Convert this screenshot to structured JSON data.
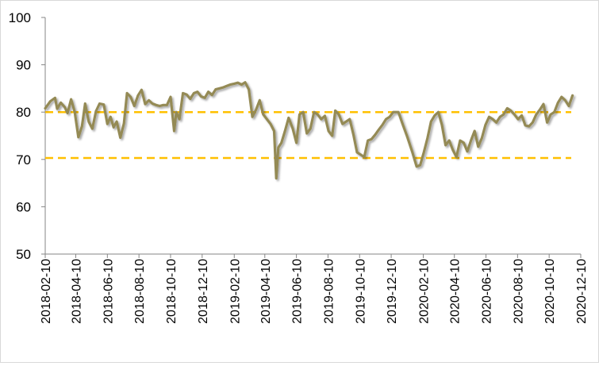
{
  "chart_data": {
    "type": "line",
    "title": "",
    "xlabel": "",
    "ylabel": "",
    "ylim": [
      50,
      100
    ],
    "yticks": [
      50,
      60,
      70,
      80,
      90,
      100
    ],
    "xlim": [
      "2018-02-10",
      "2020-12-10"
    ],
    "xticks": [
      "2018-02-10",
      "2018-04-10",
      "2018-06-10",
      "2018-08-10",
      "2018-10-10",
      "2018-12-10",
      "2019-02-10",
      "2019-04-10",
      "2019-06-10",
      "2019-08-10",
      "2019-10-10",
      "2019-12-10",
      "2020-02-10",
      "2020-04-10",
      "2020-06-10",
      "2020-08-10",
      "2020-10-10",
      "2020-12-10"
    ],
    "grid": false,
    "legend": "none",
    "reference_lines": [
      {
        "y": 80,
        "style": "dashed",
        "color": "#ffc000"
      },
      {
        "y": 70.3,
        "style": "dashed",
        "color": "#ffc000"
      }
    ],
    "series": [
      {
        "color": "#948a54",
        "points": [
          [
            "2018-02-10",
            80.8
          ],
          [
            "2018-02-20",
            82.3
          ],
          [
            "2018-03-01",
            83.0
          ],
          [
            "2018-03-05",
            80.7
          ],
          [
            "2018-03-12",
            82.0
          ],
          [
            "2018-03-20",
            81.0
          ],
          [
            "2018-03-25",
            79.8
          ],
          [
            "2018-04-01",
            82.7
          ],
          [
            "2018-04-08",
            80.0
          ],
          [
            "2018-04-15",
            74.7
          ],
          [
            "2018-04-22",
            77.0
          ],
          [
            "2018-04-28",
            81.8
          ],
          [
            "2018-05-05",
            78.0
          ],
          [
            "2018-05-12",
            76.5
          ],
          [
            "2018-05-19",
            80.2
          ],
          [
            "2018-05-26",
            81.8
          ],
          [
            "2018-06-03",
            81.6
          ],
          [
            "2018-06-10",
            77.5
          ],
          [
            "2018-06-16",
            79.0
          ],
          [
            "2018-06-22",
            76.8
          ],
          [
            "2018-06-28",
            78.0
          ],
          [
            "2018-07-05",
            74.6
          ],
          [
            "2018-07-12",
            77.6
          ],
          [
            "2018-07-18",
            84.0
          ],
          [
            "2018-07-25",
            83.2
          ],
          [
            "2018-08-01",
            81.3
          ],
          [
            "2018-08-08",
            83.5
          ],
          [
            "2018-08-15",
            84.7
          ],
          [
            "2018-08-22",
            81.7
          ],
          [
            "2018-08-29",
            82.5
          ],
          [
            "2018-09-05",
            81.8
          ],
          [
            "2018-09-12",
            81.5
          ],
          [
            "2018-09-19",
            81.3
          ],
          [
            "2018-09-26",
            81.5
          ],
          [
            "2018-10-03",
            81.5
          ],
          [
            "2018-10-10",
            83.2
          ],
          [
            "2018-10-17",
            76.0
          ],
          [
            "2018-10-21",
            80.0
          ],
          [
            "2018-10-27",
            78.5
          ],
          [
            "2018-11-03",
            84.0
          ],
          [
            "2018-11-10",
            83.7
          ],
          [
            "2018-11-17",
            82.8
          ],
          [
            "2018-11-24",
            84.0
          ],
          [
            "2018-12-01",
            84.3
          ],
          [
            "2018-12-08",
            83.3
          ],
          [
            "2018-12-15",
            83.0
          ],
          [
            "2018-12-22",
            84.3
          ],
          [
            "2018-12-29",
            83.6
          ],
          [
            "2019-01-05",
            84.8
          ],
          [
            "2019-01-12",
            85.0
          ],
          [
            "2019-01-19",
            85.2
          ],
          [
            "2019-01-26",
            85.5
          ],
          [
            "2019-02-02",
            85.8
          ],
          [
            "2019-02-10",
            86.0
          ],
          [
            "2019-02-17",
            86.2
          ],
          [
            "2019-02-24",
            85.8
          ],
          [
            "2019-03-03",
            86.3
          ],
          [
            "2019-03-10",
            84.8
          ],
          [
            "2019-03-17",
            79.0
          ],
          [
            "2019-03-24",
            80.5
          ],
          [
            "2019-03-31",
            82.5
          ],
          [
            "2019-04-07",
            79.5
          ],
          [
            "2019-04-14",
            78.5
          ],
          [
            "2019-04-21",
            77.5
          ],
          [
            "2019-04-28",
            76.0
          ],
          [
            "2019-05-02",
            66.0
          ],
          [
            "2019-05-06",
            72.5
          ],
          [
            "2019-05-12",
            73.5
          ],
          [
            "2019-05-19",
            76.0
          ],
          [
            "2019-05-26",
            78.8
          ],
          [
            "2019-06-03",
            76.5
          ],
          [
            "2019-06-10",
            73.5
          ],
          [
            "2019-06-16",
            79.5
          ],
          [
            "2019-06-23",
            80.0
          ],
          [
            "2019-06-30",
            75.5
          ],
          [
            "2019-07-07",
            76.5
          ],
          [
            "2019-07-14",
            80.0
          ],
          [
            "2019-07-21",
            79.5
          ],
          [
            "2019-07-28",
            78.5
          ],
          [
            "2019-08-04",
            79.2
          ],
          [
            "2019-08-11",
            76.0
          ],
          [
            "2019-08-18",
            75.0
          ],
          [
            "2019-08-24",
            80.3
          ],
          [
            "2019-08-31",
            79.5
          ],
          [
            "2019-09-07",
            77.5
          ],
          [
            "2019-09-14",
            78.0
          ],
          [
            "2019-09-21",
            78.5
          ],
          [
            "2019-09-28",
            75.3
          ],
          [
            "2019-10-05",
            71.5
          ],
          [
            "2019-10-12",
            71.0
          ],
          [
            "2019-10-19",
            70.5
          ],
          [
            "2019-10-26",
            74.0
          ],
          [
            "2019-11-02",
            74.3
          ],
          [
            "2019-11-09",
            75.2
          ],
          [
            "2019-11-16",
            76.3
          ],
          [
            "2019-11-23",
            77.3
          ],
          [
            "2019-11-30",
            78.5
          ],
          [
            "2019-12-07",
            79.0
          ],
          [
            "2019-12-14",
            80.0
          ],
          [
            "2019-12-24",
            80.0
          ],
          [
            "2020-01-01",
            77.5
          ],
          [
            "2020-01-10",
            74.8
          ],
          [
            "2020-01-20",
            71.5
          ],
          [
            "2020-01-28",
            68.5
          ],
          [
            "2020-02-04",
            68.8
          ],
          [
            "2020-02-11",
            71.5
          ],
          [
            "2020-02-18",
            74.5
          ],
          [
            "2020-02-25",
            78.0
          ],
          [
            "2020-03-03",
            79.3
          ],
          [
            "2020-03-10",
            80.0
          ],
          [
            "2020-03-17",
            77.3
          ],
          [
            "2020-03-24",
            73.0
          ],
          [
            "2020-03-31",
            74.0
          ],
          [
            "2020-04-07",
            72.0
          ],
          [
            "2020-04-14",
            70.5
          ],
          [
            "2020-04-21",
            74.0
          ],
          [
            "2020-04-28",
            73.5
          ],
          [
            "2020-05-05",
            71.7
          ],
          [
            "2020-05-12",
            74.0
          ],
          [
            "2020-05-19",
            76.0
          ],
          [
            "2020-05-26",
            72.7
          ],
          [
            "2020-06-02",
            74.5
          ],
          [
            "2020-06-09",
            77.3
          ],
          [
            "2020-06-16",
            79.0
          ],
          [
            "2020-06-23",
            78.5
          ],
          [
            "2020-06-30",
            77.8
          ],
          [
            "2020-07-07",
            79.0
          ],
          [
            "2020-07-14",
            79.5
          ],
          [
            "2020-07-21",
            80.8
          ],
          [
            "2020-07-28",
            80.3
          ],
          [
            "2020-08-04",
            79.5
          ],
          [
            "2020-08-11",
            78.5
          ],
          [
            "2020-08-18",
            79.3
          ],
          [
            "2020-08-25",
            77.2
          ],
          [
            "2020-09-01",
            77.0
          ],
          [
            "2020-09-08",
            77.8
          ],
          [
            "2020-09-15",
            79.5
          ],
          [
            "2020-09-22",
            80.5
          ],
          [
            "2020-09-29",
            81.7
          ],
          [
            "2020-10-06",
            77.8
          ],
          [
            "2020-10-13",
            79.5
          ],
          [
            "2020-10-20",
            80.0
          ],
          [
            "2020-10-27",
            82.0
          ],
          [
            "2020-11-03",
            83.2
          ],
          [
            "2020-11-10",
            82.5
          ],
          [
            "2020-11-17",
            81.3
          ],
          [
            "2020-11-24",
            83.5
          ]
        ]
      }
    ]
  }
}
